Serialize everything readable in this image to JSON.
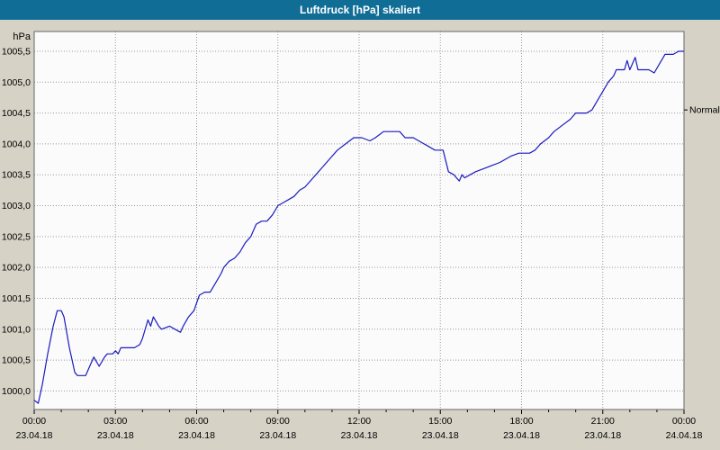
{
  "window": {
    "title": "Luftdruck [hPa] skaliert"
  },
  "colors": {
    "title_bar_bg": "#106d96",
    "title_text": "#ffffff",
    "page_bg": "#d6d2c6",
    "plot_bg": "#fbfbfb",
    "grid": "#999999",
    "border": "#666666",
    "axis_text": "#000000",
    "line": "#1b1bbf"
  },
  "chart_data": {
    "type": "line",
    "title": "Luftdruck [hPa] skaliert",
    "ylabel_unit": "hPa",
    "grid": "dotted",
    "legend_position": "none",
    "xlim_hours": [
      0,
      24
    ],
    "ylim": [
      999.7,
      1005.82
    ],
    "normal_marker": {
      "label": "Normal",
      "value": 1004.55
    },
    "y_ticks": [
      {
        "value": 1000.0,
        "label": "1000,0"
      },
      {
        "value": 1000.5,
        "label": "1000,5"
      },
      {
        "value": 1001.0,
        "label": "1001,0"
      },
      {
        "value": 1001.5,
        "label": "1001,5"
      },
      {
        "value": 1002.0,
        "label": "1002,0"
      },
      {
        "value": 1002.5,
        "label": "1002,5"
      },
      {
        "value": 1003.0,
        "label": "1003,0"
      },
      {
        "value": 1003.5,
        "label": "1003,5"
      },
      {
        "value": 1004.0,
        "label": "1004,0"
      },
      {
        "value": 1004.5,
        "label": "1004,5"
      },
      {
        "value": 1005.0,
        "label": "1005,0"
      },
      {
        "value": 1005.5,
        "label": "1005,5"
      }
    ],
    "x_ticks": [
      {
        "hour": 0,
        "time": "00:00",
        "date": "23.04.18"
      },
      {
        "hour": 3,
        "time": "03:00",
        "date": "23.04.18"
      },
      {
        "hour": 6,
        "time": "06:00",
        "date": "23.04.18"
      },
      {
        "hour": 9,
        "time": "09:00",
        "date": "23.04.18"
      },
      {
        "hour": 12,
        "time": "12:00",
        "date": "23.04.18"
      },
      {
        "hour": 15,
        "time": "15:00",
        "date": "23.04.18"
      },
      {
        "hour": 18,
        "time": "18:00",
        "date": "23.04.18"
      },
      {
        "hour": 21,
        "time": "21:00",
        "date": "23.04.18"
      },
      {
        "hour": 24,
        "time": "00:00",
        "date": "24.04.18"
      }
    ],
    "series": [
      {
        "name": "Luftdruck",
        "color": "#1b1bbf",
        "points": [
          [
            0.0,
            999.85
          ],
          [
            0.15,
            999.8
          ],
          [
            0.3,
            1000.1
          ],
          [
            0.5,
            1000.6
          ],
          [
            0.7,
            1001.05
          ],
          [
            0.85,
            1001.3
          ],
          [
            1.0,
            1001.3
          ],
          [
            1.1,
            1001.2
          ],
          [
            1.3,
            1000.7
          ],
          [
            1.5,
            1000.3
          ],
          [
            1.6,
            1000.25
          ],
          [
            1.9,
            1000.25
          ],
          [
            2.1,
            1000.45
          ],
          [
            2.2,
            1000.55
          ],
          [
            2.4,
            1000.4
          ],
          [
            2.6,
            1000.55
          ],
          [
            2.7,
            1000.6
          ],
          [
            2.9,
            1000.6
          ],
          [
            3.0,
            1000.65
          ],
          [
            3.1,
            1000.6
          ],
          [
            3.2,
            1000.7
          ],
          [
            3.5,
            1000.7
          ],
          [
            3.7,
            1000.7
          ],
          [
            3.9,
            1000.75
          ],
          [
            4.0,
            1000.85
          ],
          [
            4.2,
            1001.15
          ],
          [
            4.3,
            1001.05
          ],
          [
            4.4,
            1001.2
          ],
          [
            4.6,
            1001.05
          ],
          [
            4.7,
            1001.0
          ],
          [
            5.0,
            1001.05
          ],
          [
            5.2,
            1001.0
          ],
          [
            5.4,
            1000.95
          ],
          [
            5.5,
            1001.05
          ],
          [
            5.7,
            1001.2
          ],
          [
            5.9,
            1001.3
          ],
          [
            6.1,
            1001.55
          ],
          [
            6.3,
            1001.6
          ],
          [
            6.5,
            1001.6
          ],
          [
            6.7,
            1001.75
          ],
          [
            6.9,
            1001.9
          ],
          [
            7.0,
            1002.0
          ],
          [
            7.2,
            1002.1
          ],
          [
            7.4,
            1002.15
          ],
          [
            7.6,
            1002.25
          ],
          [
            7.8,
            1002.4
          ],
          [
            8.0,
            1002.5
          ],
          [
            8.2,
            1002.7
          ],
          [
            8.4,
            1002.75
          ],
          [
            8.6,
            1002.75
          ],
          [
            8.8,
            1002.85
          ],
          [
            9.0,
            1003.0
          ],
          [
            9.2,
            1003.05
          ],
          [
            9.4,
            1003.1
          ],
          [
            9.6,
            1003.15
          ],
          [
            9.8,
            1003.25
          ],
          [
            10.0,
            1003.3
          ],
          [
            10.2,
            1003.4
          ],
          [
            10.4,
            1003.5
          ],
          [
            10.6,
            1003.6
          ],
          [
            10.8,
            1003.7
          ],
          [
            11.0,
            1003.8
          ],
          [
            11.2,
            1003.9
          ],
          [
            11.5,
            1004.0
          ],
          [
            11.8,
            1004.1
          ],
          [
            12.1,
            1004.1
          ],
          [
            12.4,
            1004.05
          ],
          [
            12.6,
            1004.1
          ],
          [
            12.9,
            1004.2
          ],
          [
            13.3,
            1004.2
          ],
          [
            13.5,
            1004.2
          ],
          [
            13.7,
            1004.1
          ],
          [
            14.0,
            1004.1
          ],
          [
            14.2,
            1004.05
          ],
          [
            14.4,
            1004.0
          ],
          [
            14.6,
            1003.95
          ],
          [
            14.8,
            1003.9
          ],
          [
            15.1,
            1003.9
          ],
          [
            15.3,
            1003.55
          ],
          [
            15.5,
            1003.5
          ],
          [
            15.7,
            1003.4
          ],
          [
            15.8,
            1003.5
          ],
          [
            15.9,
            1003.45
          ],
          [
            16.1,
            1003.5
          ],
          [
            16.3,
            1003.55
          ],
          [
            16.6,
            1003.6
          ],
          [
            16.9,
            1003.65
          ],
          [
            17.2,
            1003.7
          ],
          [
            17.6,
            1003.8
          ],
          [
            17.9,
            1003.85
          ],
          [
            18.3,
            1003.85
          ],
          [
            18.5,
            1003.9
          ],
          [
            18.7,
            1004.0
          ],
          [
            19.0,
            1004.1
          ],
          [
            19.2,
            1004.2
          ],
          [
            19.5,
            1004.3
          ],
          [
            19.8,
            1004.4
          ],
          [
            20.0,
            1004.5
          ],
          [
            20.4,
            1004.5
          ],
          [
            20.6,
            1004.55
          ],
          [
            20.8,
            1004.7
          ],
          [
            21.0,
            1004.85
          ],
          [
            21.2,
            1005.0
          ],
          [
            21.4,
            1005.1
          ],
          [
            21.5,
            1005.2
          ],
          [
            21.8,
            1005.2
          ],
          [
            21.9,
            1005.35
          ],
          [
            22.0,
            1005.2
          ],
          [
            22.2,
            1005.4
          ],
          [
            22.3,
            1005.2
          ],
          [
            22.7,
            1005.2
          ],
          [
            22.9,
            1005.15
          ],
          [
            23.1,
            1005.3
          ],
          [
            23.3,
            1005.45
          ],
          [
            23.6,
            1005.45
          ],
          [
            23.8,
            1005.5
          ],
          [
            24.0,
            1005.5
          ]
        ]
      }
    ]
  }
}
